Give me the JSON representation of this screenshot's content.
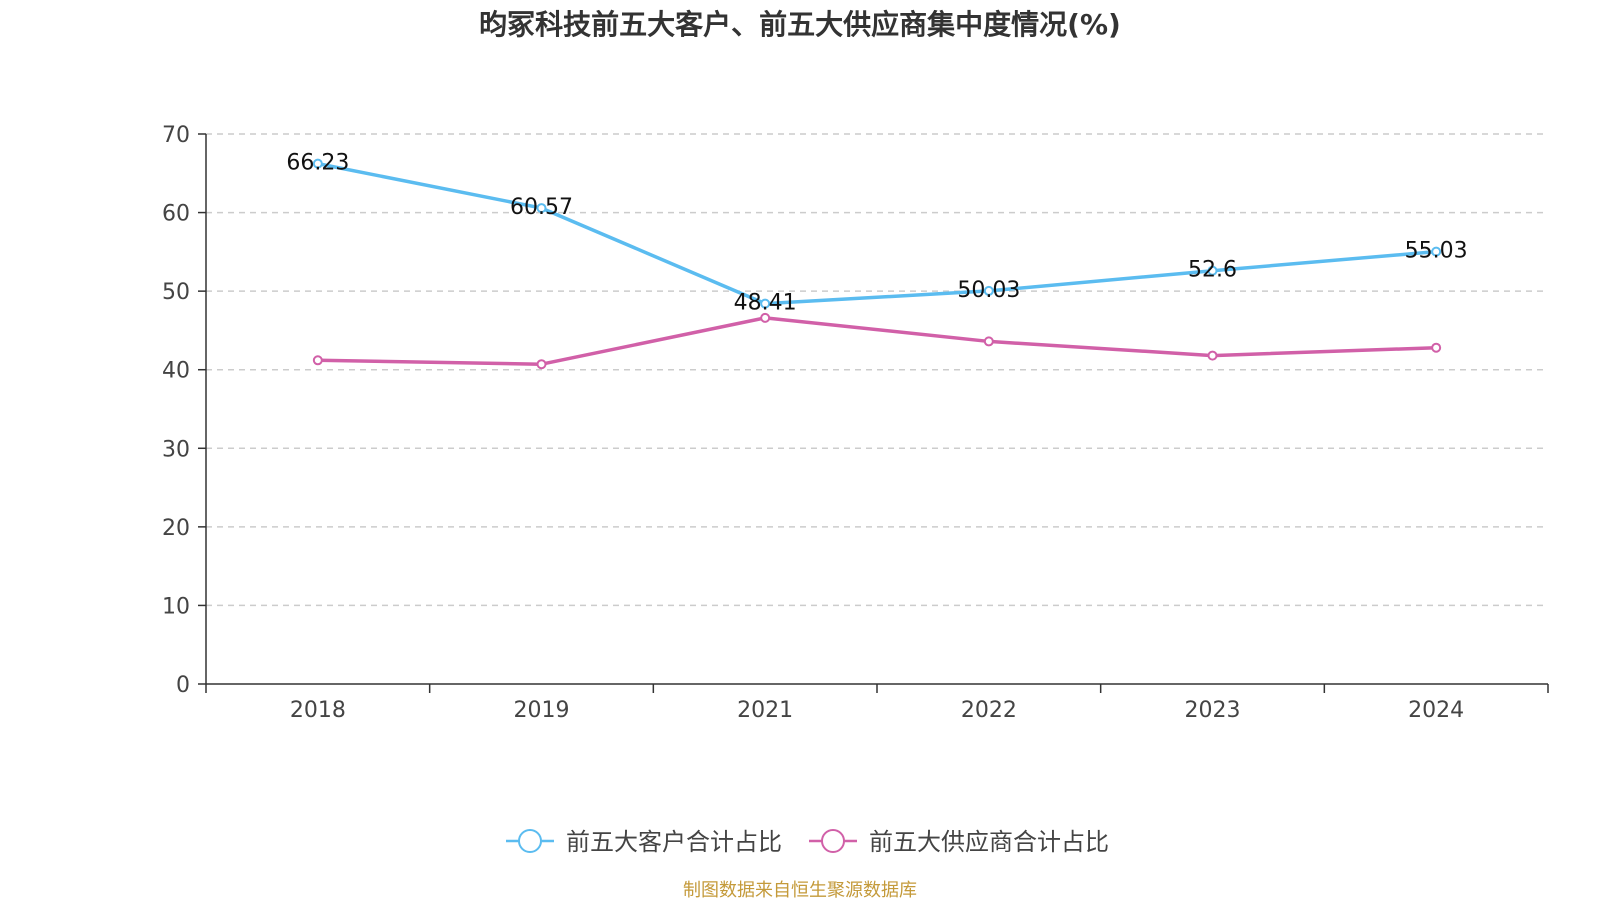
{
  "chart_data": {
    "type": "line",
    "title": "昀冢科技前五大客户、前五大供应商集中度情况(%)",
    "categories": [
      "2018",
      "2019",
      "2021",
      "2022",
      "2023",
      "2024"
    ],
    "ylim": [
      0,
      70
    ],
    "yticks": [
      "0",
      "10",
      "20",
      "30",
      "40",
      "50",
      "60",
      "70"
    ],
    "grid": true,
    "legend_position": "bottom-center",
    "series": [
      {
        "name": "前五大客户合计占比",
        "color": "#5bbcf0",
        "values": [
          66.23,
          60.57,
          48.41,
          50.03,
          52.6,
          55.03
        ],
        "labels": [
          "66.23",
          "60.57",
          "48.41",
          "50.03",
          "52.6",
          "55.03"
        ]
      },
      {
        "name": "前五大供应商合计占比",
        "color": "#d160a8",
        "values": [
          41.2,
          40.7,
          46.6,
          43.6,
          41.8,
          42.8
        ]
      }
    ]
  },
  "source": "制图数据来自恒生聚源数据库",
  "source_color": "#c49a3a"
}
